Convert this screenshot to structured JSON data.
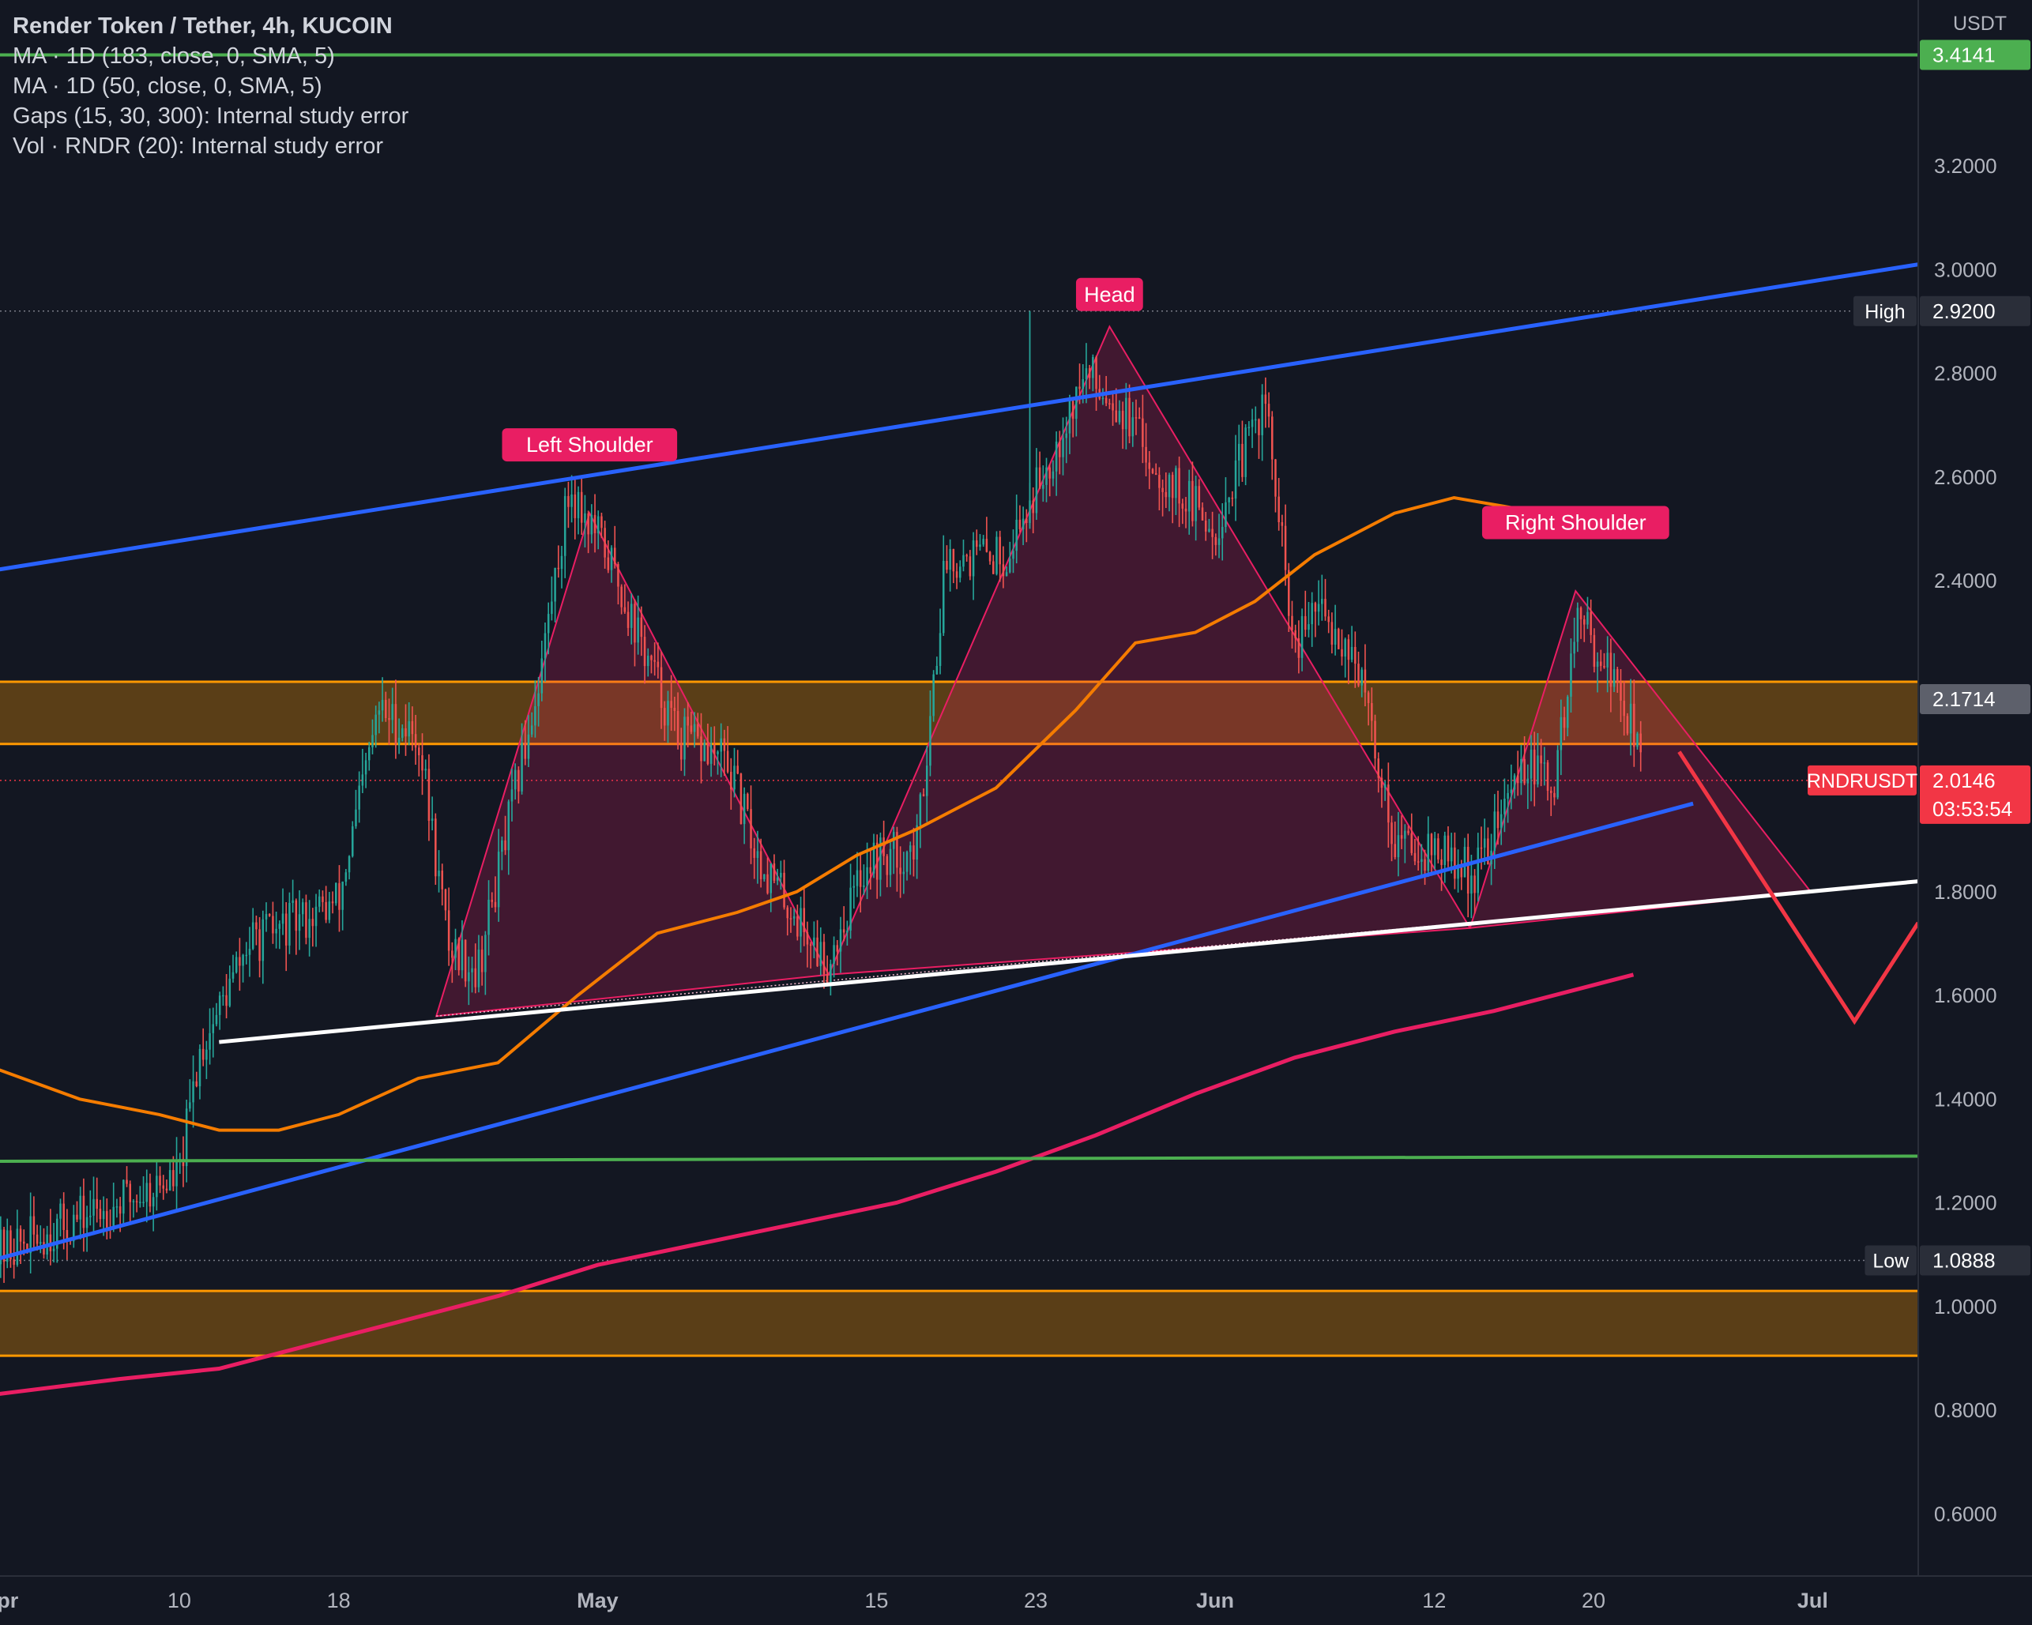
{
  "header": {
    "title": "Render Token / Tether, 4h, KUCOIN",
    "indicators": [
      "MA · 1D (183, close, 0, SMA, 5)",
      "MA · 1D (50, close, 0, SMA, 5)",
      "Gaps (15, 30, 300): Internal study error",
      "Vol · RNDR (20): Internal study error"
    ]
  },
  "colors": {
    "background": "#131722",
    "up": "#26a69a",
    "down": "#ef5350",
    "channel": "#2962ff",
    "support": "#ffffff",
    "green_level": "#4caf50",
    "zone": "#ff9800",
    "pattern": "#e91e63",
    "ma_orange": "#f57c00",
    "ma_pink": "#e91e63",
    "projection": "#f23645"
  },
  "chart_data": {
    "type": "candlestick",
    "symbol": "RNDRUSDT",
    "currency": "USDT",
    "y_ticks": [
      "3.2000",
      "3.0000",
      "2.8000",
      "2.6000",
      "2.4000",
      "1.8000",
      "1.6000",
      "1.4000",
      "1.2000",
      "1.0000",
      "0.8000",
      "0.6000"
    ],
    "y_tick_values": [
      3.2,
      3.0,
      2.8,
      2.6,
      2.4,
      1.8,
      1.6,
      1.4,
      1.2,
      1.0,
      0.8,
      0.6
    ],
    "ylim": [
      0.48,
      3.52
    ],
    "x_ticks": [
      {
        "label": "Apr",
        "day": 0
      },
      {
        "label": "10",
        "day": 9
      },
      {
        "label": "18",
        "day": 17
      },
      {
        "label": "May",
        "day": 30
      },
      {
        "label": "15",
        "day": 44
      },
      {
        "label": "23",
        "day": 52
      },
      {
        "label": "Jun",
        "day": 61
      },
      {
        "label": "12",
        "day": 72
      },
      {
        "label": "20",
        "day": 80
      },
      {
        "label": "Jul",
        "day": 91
      }
    ],
    "xlim_days": [
      0,
      96.3
    ],
    "price_labels": [
      {
        "text": "3.4141",
        "value": 3.4141,
        "color": "#4caf50"
      },
      {
        "tag": "High",
        "text": "2.9200",
        "value": 2.92,
        "color": "#2a2e39"
      },
      {
        "text": "2.1714",
        "value": 2.1714,
        "color": "#5d606b"
      },
      {
        "tag": "RNDRUSDT",
        "text": "2.0146",
        "sub": "03:53:54",
        "value": 2.0146,
        "color": "#f23645"
      },
      {
        "tag": "Low",
        "text": "1.0888",
        "value": 1.0888,
        "color": "#2a2e39"
      }
    ],
    "annotations": [
      {
        "text": "Left Shoulder",
        "day": 29.6,
        "value": 2.63
      },
      {
        "text": "Head",
        "day": 55.7,
        "value": 2.92
      },
      {
        "text": "Right Shoulder",
        "day": 79.1,
        "value": 2.48
      }
    ],
    "key_points": [
      {
        "day": -0.3,
        "value": 1.1
      },
      {
        "day": 9.0,
        "value": 1.25
      },
      {
        "day": 10.0,
        "value": 1.49
      },
      {
        "day": 12.5,
        "value": 1.7
      },
      {
        "day": 17.0,
        "value": 1.78
      },
      {
        "day": 19.0,
        "value": 2.15
      },
      {
        "day": 21.0,
        "value": 2.1
      },
      {
        "day": 22.5,
        "value": 1.7
      },
      {
        "day": 24.0,
        "value": 1.65
      },
      {
        "day": 27.0,
        "value": 2.2
      },
      {
        "day": 28.6,
        "value": 2.58
      },
      {
        "day": 30.5,
        "value": 2.45
      },
      {
        "day": 32.0,
        "value": 2.3
      },
      {
        "day": 34.0,
        "value": 2.1
      },
      {
        "day": 36.5,
        "value": 2.05
      },
      {
        "day": 38.0,
        "value": 1.87
      },
      {
        "day": 41.5,
        "value": 1.66
      },
      {
        "day": 43.5,
        "value": 1.86
      },
      {
        "day": 46.0,
        "value": 1.88
      },
      {
        "day": 47.5,
        "value": 2.45
      },
      {
        "day": 50.5,
        "value": 2.45
      },
      {
        "day": 52.5,
        "value": 2.62
      },
      {
        "day": 54.5,
        "value": 2.8
      },
      {
        "day": 56.0,
        "value": 2.75
      },
      {
        "day": 58.0,
        "value": 2.62
      },
      {
        "day": 61.0,
        "value": 2.5
      },
      {
        "day": 63.5,
        "value": 2.75
      },
      {
        "day": 65.0,
        "value": 2.25
      },
      {
        "day": 66.0,
        "value": 2.35
      },
      {
        "day": 68.0,
        "value": 2.26
      },
      {
        "day": 70.0,
        "value": 1.9
      },
      {
        "day": 72.0,
        "value": 1.88
      },
      {
        "day": 74.0,
        "value": 1.83
      },
      {
        "day": 76.5,
        "value": 2.05
      },
      {
        "day": 78.0,
        "value": 2.0
      },
      {
        "day": 79.2,
        "value": 2.33
      },
      {
        "day": 80.5,
        "value": 2.25
      },
      {
        "day": 82.0,
        "value": 2.12
      },
      {
        "day": 82.5,
        "value": 2.02
      }
    ],
    "ma_183": [
      [
        -0.3,
        1.46
      ],
      [
        4,
        1.4
      ],
      [
        8,
        1.37
      ],
      [
        11,
        1.34
      ],
      [
        14,
        1.34
      ],
      [
        17,
        1.37
      ],
      [
        21,
        1.44
      ],
      [
        25,
        1.47
      ],
      [
        29,
        1.6
      ],
      [
        33,
        1.72
      ],
      [
        37,
        1.76
      ],
      [
        40,
        1.8
      ],
      [
        43,
        1.87
      ],
      [
        46,
        1.92
      ],
      [
        50,
        2.0
      ],
      [
        54,
        2.15
      ],
      [
        57,
        2.28
      ],
      [
        60,
        2.3
      ],
      [
        63,
        2.36
      ],
      [
        66,
        2.45
      ],
      [
        70,
        2.53
      ],
      [
        73,
        2.56
      ],
      [
        76,
        2.54
      ],
      [
        79,
        2.51
      ],
      [
        82,
        2.5
      ]
    ],
    "ma_50": [
      [
        -0.3,
        0.83
      ],
      [
        6,
        0.86
      ],
      [
        11,
        0.88
      ],
      [
        15,
        0.92
      ],
      [
        20,
        0.97
      ],
      [
        25,
        1.02
      ],
      [
        30,
        1.08
      ],
      [
        35,
        1.12
      ],
      [
        40,
        1.16
      ],
      [
        45,
        1.2
      ],
      [
        50,
        1.26
      ],
      [
        55,
        1.33
      ],
      [
        60,
        1.41
      ],
      [
        65,
        1.48
      ],
      [
        70,
        1.53
      ],
      [
        75,
        1.57
      ],
      [
        80,
        1.62
      ],
      [
        82,
        1.64
      ]
    ],
    "zones": [
      [
        2.085,
        2.205
      ],
      [
        0.905,
        1.03
      ]
    ],
    "levels": [
      3.4141
    ],
    "trendlines": [
      {
        "name": "channel-upper",
        "from": [
          -0.3,
          2.42
        ],
        "to": [
          96.3,
          3.01
        ]
      },
      {
        "name": "channel-lower",
        "from": [
          -0.3,
          1.09
        ],
        "to": [
          85,
          1.97
        ]
      },
      {
        "name": "neckline",
        "from": [
          11,
          1.51
        ],
        "to": [
          96.3,
          1.82
        ]
      },
      {
        "name": "green-support",
        "from": [
          -0.3,
          1.28
        ],
        "to": [
          96.3,
          1.29
        ]
      }
    ],
    "pattern_triangles": [
      [
        [
          21.9,
          1.56
        ],
        [
          29.6,
          2.53
        ],
        [
          41.6,
          1.64
        ]
      ],
      [
        [
          41.6,
          1.64
        ],
        [
          55.7,
          2.89
        ],
        [
          73.8,
          1.73
        ]
      ],
      [
        [
          73.8,
          1.73
        ],
        [
          79.1,
          2.38
        ],
        [
          90.9,
          1.8
        ]
      ]
    ],
    "projection": [
      [
        84.3,
        2.07
      ],
      [
        93.1,
        1.55
      ],
      [
        96.3,
        1.74
      ]
    ]
  }
}
